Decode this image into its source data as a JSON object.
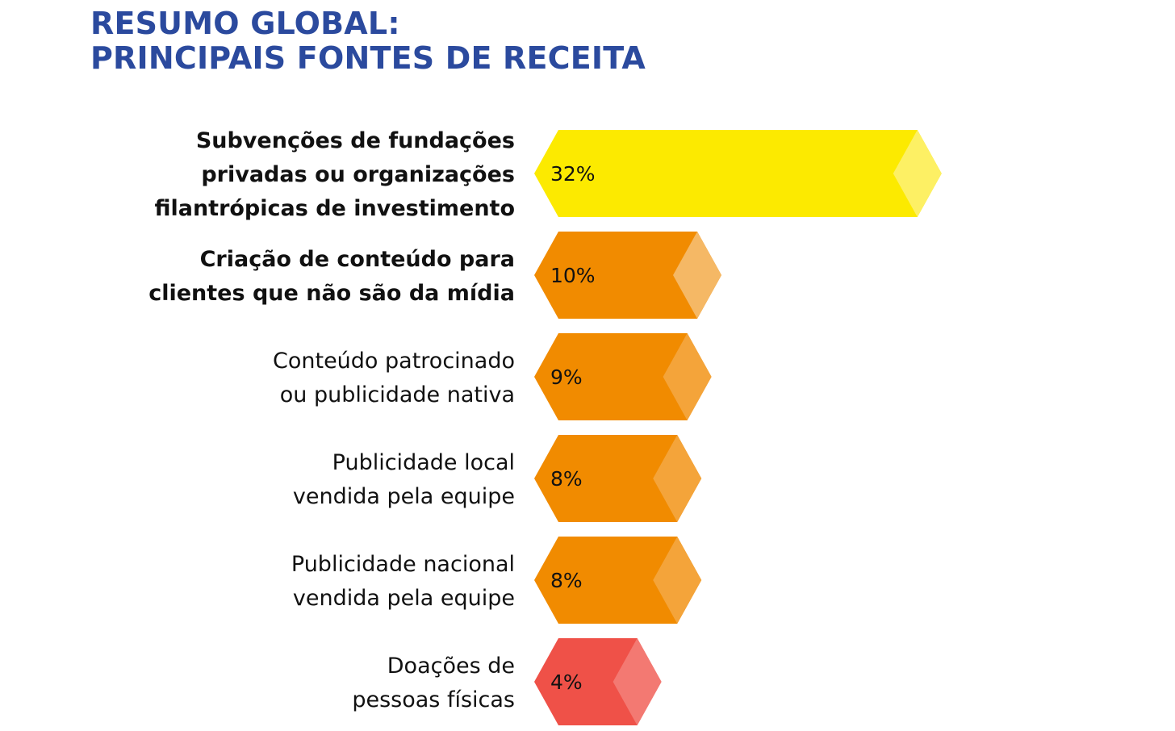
{
  "title_lines": [
    "RESUMO GLOBAL:",
    "PRINCIPAIS FONTES DE RECEITA"
  ],
  "colors": {
    "title": "#2b4a9e",
    "yellow": "#fcea00",
    "yellow_tip": "#fdf064",
    "orange": "#f18b00",
    "orange_tip_light": "#f5b865",
    "orange_tip": "#f4a43a",
    "red": "#ef5148",
    "red_tip": "#f37972"
  },
  "chart_data": {
    "type": "bar",
    "orientation": "horizontal",
    "value_unit": "%",
    "categories": [
      {
        "lines": [
          "Subvenções de fundações",
          "privadas ou organizações",
          "filantrópicas de investimento"
        ],
        "bold": true
      },
      {
        "lines": [
          "Criação de conteúdo para",
          "clientes que não são da mídia"
        ],
        "bold": true
      },
      {
        "lines": [
          "Conteúdo patrocinado",
          "ou publicidade nativa"
        ],
        "bold": false
      },
      {
        "lines": [
          "Publicidade local",
          "vendida pela equipe"
        ],
        "bold": false
      },
      {
        "lines": [
          "Publicidade nacional",
          "vendida pela equipe"
        ],
        "bold": false
      },
      {
        "lines": [
          "Doações de",
          "pessoas físicas"
        ],
        "bold": false
      }
    ],
    "values": [
      32,
      10,
      9,
      8,
      8,
      4
    ],
    "value_labels": [
      "32%",
      "10%",
      "9%",
      "8%",
      "8%",
      "4%"
    ],
    "bar_colors": [
      "yellow",
      "orange",
      "orange",
      "orange",
      "orange",
      "red"
    ],
    "tip_colors": [
      "yellow_tip",
      "orange_tip_light",
      "orange_tip",
      "orange_tip",
      "orange_tip",
      "red_tip"
    ]
  }
}
